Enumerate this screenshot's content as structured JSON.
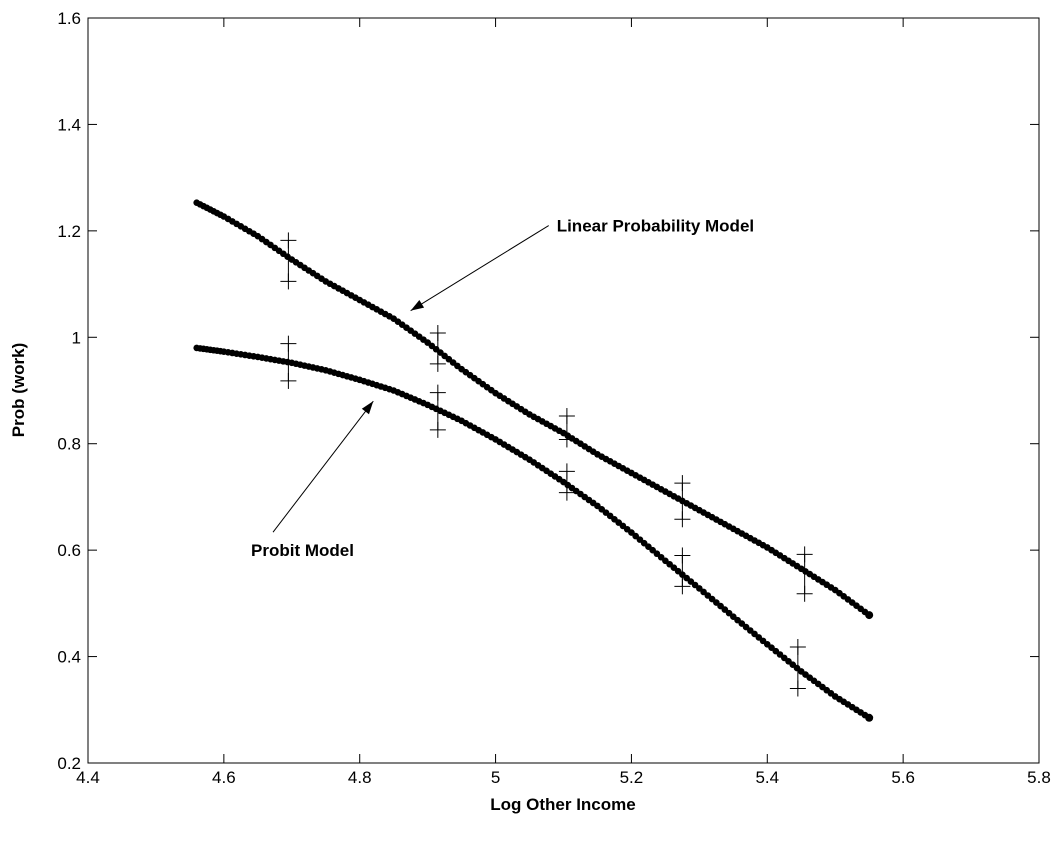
{
  "chart_data": {
    "type": "scatter",
    "title": "",
    "xlabel": "Log Other Income",
    "ylabel": "Prob (work)",
    "xlim": [
      4.4,
      5.8
    ],
    "ylim": [
      0.2,
      1.6
    ],
    "xticks": [
      "4.4",
      "4.6",
      "4.8",
      "5",
      "5.2",
      "5.4",
      "5.6",
      "5.8"
    ],
    "yticks": [
      "0.2",
      "0.4",
      "0.6",
      "0.8",
      "1",
      "1.2",
      "1.4",
      "1.6"
    ],
    "grid": false,
    "series": [
      {
        "name": "Linear Probability Model",
        "x": [
          4.56,
          4.6,
          4.65,
          4.7,
          4.75,
          4.8,
          4.85,
          4.9,
          4.95,
          5.0,
          5.05,
          5.1,
          5.15,
          5.2,
          5.25,
          5.3,
          5.35,
          5.4,
          5.45,
          5.5,
          5.55
        ],
        "y": [
          1.253,
          1.227,
          1.19,
          1.146,
          1.105,
          1.07,
          1.035,
          0.99,
          0.94,
          0.895,
          0.855,
          0.82,
          0.78,
          0.745,
          0.71,
          0.675,
          0.64,
          0.605,
          0.565,
          0.525,
          0.478
        ],
        "error_bars": [
          {
            "x": 4.695,
            "y": 1.145,
            "low": 1.105,
            "high": 1.182
          },
          {
            "x": 4.915,
            "y": 0.98,
            "low": 0.95,
            "high": 1.008
          },
          {
            "x": 5.105,
            "y": 0.83,
            "low": 0.808,
            "high": 0.852
          },
          {
            "x": 5.275,
            "y": 0.695,
            "low": 0.658,
            "high": 0.726
          },
          {
            "x": 5.455,
            "y": 0.555,
            "low": 0.518,
            "high": 0.592
          }
        ]
      },
      {
        "name": "Probit Model",
        "x": [
          4.56,
          4.6,
          4.65,
          4.7,
          4.75,
          4.8,
          4.85,
          4.9,
          4.95,
          5.0,
          5.05,
          5.1,
          5.15,
          5.2,
          5.25,
          5.3,
          5.35,
          5.4,
          5.45,
          5.5,
          5.55
        ],
        "y": [
          0.98,
          0.973,
          0.963,
          0.952,
          0.938,
          0.92,
          0.9,
          0.873,
          0.843,
          0.808,
          0.77,
          0.728,
          0.683,
          0.633,
          0.58,
          0.528,
          0.475,
          0.423,
          0.372,
          0.325,
          0.285
        ],
        "error_bars": [
          {
            "x": 4.695,
            "y": 0.952,
            "low": 0.918,
            "high": 0.988
          },
          {
            "x": 4.915,
            "y": 0.86,
            "low": 0.826,
            "high": 0.896
          },
          {
            "x": 5.105,
            "y": 0.725,
            "low": 0.708,
            "high": 0.748
          },
          {
            "x": 5.275,
            "y": 0.56,
            "low": 0.532,
            "high": 0.59
          },
          {
            "x": 5.445,
            "y": 0.378,
            "low": 0.34,
            "high": 0.418
          }
        ]
      }
    ],
    "annotations": [
      {
        "text": "Linear Probability Model",
        "x": 5.09,
        "y": 1.21,
        "arrow_to": [
          4.875,
          1.05
        ]
      },
      {
        "text": "Probit Model",
        "x": 4.64,
        "y": 0.6,
        "arrow_to": [
          4.82,
          0.88
        ]
      }
    ]
  }
}
